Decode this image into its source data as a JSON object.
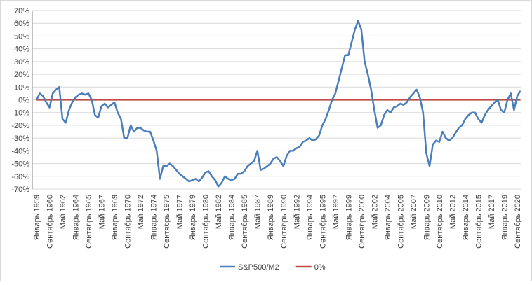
{
  "chart_data": {
    "type": "line",
    "categories": [
      "Январь 1959",
      null,
      null,
      null,
      "Сентябрь 1960",
      null,
      null,
      null,
      "Май 1962",
      null,
      null,
      null,
      "Январь 1964",
      null,
      null,
      null,
      "Сентябрь 1965",
      null,
      null,
      null,
      "Май 1967",
      null,
      null,
      null,
      "Январь 1969",
      null,
      null,
      null,
      "Сентябрь 1970",
      null,
      null,
      null,
      "Май 1972",
      null,
      null,
      null,
      "Январь 1974",
      null,
      null,
      null,
      "Сентябрь 1975",
      null,
      null,
      null,
      "Май 1977",
      null,
      null,
      null,
      "Январь 1979",
      null,
      null,
      null,
      "Сентябрь 1980",
      null,
      null,
      null,
      "Май 1982",
      null,
      null,
      null,
      "Январь 1984",
      null,
      null,
      null,
      "Сентябрь 1985",
      null,
      null,
      null,
      "Май 1987",
      null,
      null,
      null,
      "Январь 1989",
      null,
      null,
      null,
      "Сентябрь 1990",
      null,
      null,
      null,
      "Май 1992",
      null,
      null,
      null,
      "Январь 1994",
      null,
      null,
      null,
      "Сентябрь 1995",
      null,
      null,
      null,
      "Май 1997",
      null,
      null,
      null,
      "Январь 1999",
      null,
      null,
      null,
      "Сентябрь 2000",
      null,
      null,
      null,
      "Май 2002",
      null,
      null,
      null,
      "Январь 2004",
      null,
      null,
      null,
      "Сентябрь 2005",
      null,
      null,
      null,
      "Май 2007",
      null,
      null,
      null,
      "Январь 2009",
      null,
      null,
      null,
      "Сентябрь 2010",
      null,
      null,
      null,
      "Май 2012",
      null,
      null,
      null,
      "Январь 2014",
      null,
      null,
      null,
      "Сентябрь 2015",
      null,
      null,
      null,
      "Май 2017",
      null,
      null,
      null,
      "Январь 2019",
      null,
      null,
      null,
      "Сентябрь 2020",
      null
    ],
    "series": [
      {
        "name": "S&P500/M2",
        "color": "#4a7ebb",
        "values": [
          0,
          5,
          3,
          -2,
          -6,
          5,
          8,
          10,
          -15,
          -18,
          -8,
          -2,
          2,
          4,
          5,
          4,
          5,
          0,
          -12,
          -14,
          -5,
          -3,
          -6,
          -4,
          -2,
          -10,
          -15,
          -30,
          -30,
          -20,
          -25,
          -22,
          -22,
          -24,
          -25,
          -25,
          -32,
          -40,
          -62,
          -52,
          -52,
          -50,
          -52,
          -55,
          -58,
          -60,
          -62,
          -64,
          -63,
          -62,
          -64,
          -61,
          -57,
          -56,
          -60,
          -63,
          -68,
          -65,
          -60,
          -62,
          -63,
          -62,
          -58,
          -58,
          -56,
          -52,
          -50,
          -48,
          -40,
          -55,
          -54,
          -52,
          -50,
          -46,
          -45,
          -48,
          -52,
          -44,
          -40,
          -40,
          -38,
          -37,
          -33,
          -32,
          -30,
          -32,
          -31,
          -28,
          -20,
          -15,
          -8,
          0,
          5,
          15,
          25,
          35,
          35,
          45,
          55,
          62,
          55,
          30,
          20,
          8,
          -8,
          -22,
          -20,
          -12,
          -8,
          -10,
          -6,
          -5,
          -3,
          -4,
          -2,
          2,
          5,
          8,
          2,
          -10,
          -42,
          -52,
          -35,
          -32,
          -33,
          -25,
          -30,
          -32,
          -30,
          -26,
          -22,
          -20,
          -15,
          -12,
          -10,
          -10,
          -15,
          -18,
          -12,
          -8,
          -5,
          -2,
          0,
          -8,
          -10,
          0,
          5,
          -8,
          3,
          7
        ]
      },
      {
        "name": "0%",
        "color": "#be4b48",
        "values": [
          0,
          0,
          0,
          0,
          0,
          0,
          0,
          0,
          0,
          0,
          0,
          0,
          0,
          0,
          0,
          0,
          0,
          0,
          0,
          0,
          0,
          0,
          0,
          0,
          0,
          0,
          0,
          0,
          0,
          0,
          0,
          0,
          0,
          0,
          0,
          0,
          0,
          0,
          0,
          0,
          0,
          0,
          0,
          0,
          0,
          0,
          0,
          0,
          0,
          0,
          0,
          0,
          0,
          0,
          0,
          0,
          0,
          0,
          0,
          0,
          0,
          0,
          0,
          0,
          0,
          0,
          0,
          0,
          0,
          0,
          0,
          0,
          0,
          0,
          0,
          0,
          0,
          0,
          0,
          0,
          0,
          0,
          0,
          0,
          0,
          0,
          0,
          0,
          0,
          0,
          0,
          0,
          0,
          0,
          0,
          0,
          0,
          0,
          0,
          0,
          0,
          0,
          0,
          0,
          0,
          0,
          0,
          0,
          0,
          0,
          0,
          0,
          0,
          0,
          0,
          0,
          0,
          0,
          0,
          0,
          0,
          0,
          0,
          0,
          0,
          0,
          0,
          0,
          0,
          0,
          0,
          0,
          0,
          0,
          0,
          0,
          0,
          0,
          0,
          0,
          0,
          0,
          0,
          0,
          0,
          0,
          0,
          0,
          0,
          0
        ]
      }
    ],
    "ylim": [
      -70,
      70
    ],
    "yticks": [
      {
        "value": -70,
        "label": "-70%"
      },
      {
        "value": -60,
        "label": "-60%"
      },
      {
        "value": -50,
        "label": "-50%"
      },
      {
        "value": -40,
        "label": "-40%"
      },
      {
        "value": -30,
        "label": "-30%"
      },
      {
        "value": -20,
        "label": "-20%"
      },
      {
        "value": -10,
        "label": "-10%"
      },
      {
        "value": 0,
        "label": "0%"
      },
      {
        "value": 10,
        "label": "10%"
      },
      {
        "value": 20,
        "label": "20%"
      },
      {
        "value": 30,
        "label": "30%"
      },
      {
        "value": 40,
        "label": "40%"
      },
      {
        "value": 50,
        "label": "50%"
      },
      {
        "value": 60,
        "label": "60%"
      },
      {
        "value": 70,
        "label": "70%"
      }
    ],
    "grid": true,
    "legend": "bottom"
  }
}
